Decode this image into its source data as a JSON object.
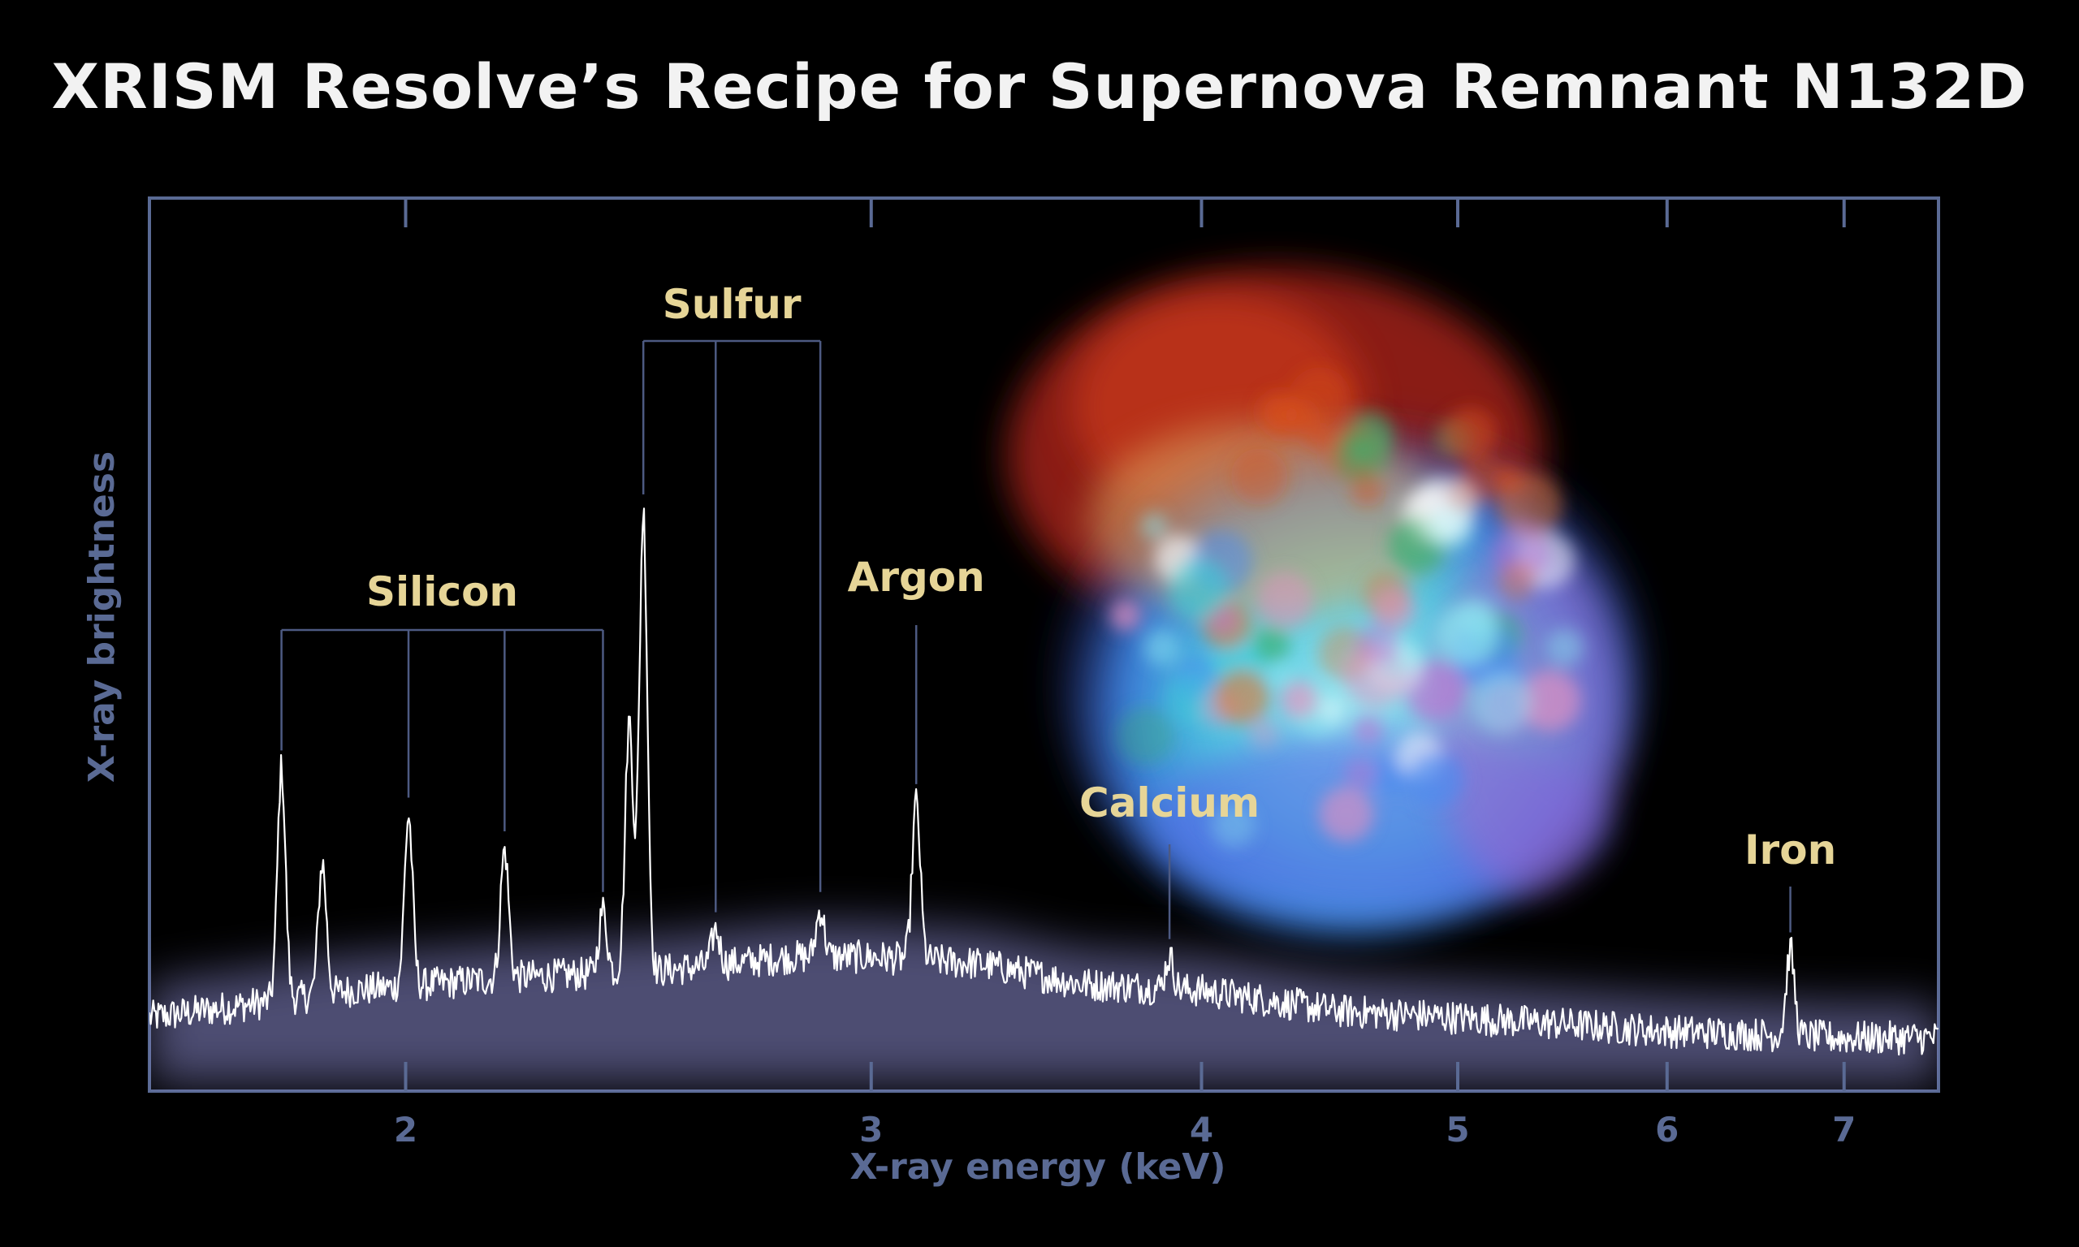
{
  "chart_data": {
    "type": "line",
    "title": "XRISM Resolve’s Recipe for Supernova Remnant N132D",
    "xlabel": "X-ray energy (keV)",
    "ylabel": "X-ray brightness",
    "xscale": "log",
    "xlim": [
      1.6,
      7.6
    ],
    "ylim": [
      0,
      1
    ],
    "xticks": [
      {
        "value": 2,
        "label": "2"
      },
      {
        "value": 3,
        "label": "3"
      },
      {
        "value": 4,
        "label": "4"
      },
      {
        "value": 5,
        "label": "5"
      },
      {
        "value": 6,
        "label": "6"
      },
      {
        "value": 7,
        "label": "7"
      }
    ],
    "yticks_shown": false,
    "grid": false,
    "continuum": [
      [
        1.6,
        0.05
      ],
      [
        1.9,
        0.09
      ],
      [
        2.2,
        0.11
      ],
      [
        2.5,
        0.12
      ],
      [
        2.8,
        0.14
      ],
      [
        3.0,
        0.14
      ],
      [
        3.3,
        0.13
      ],
      [
        3.6,
        0.1
      ],
      [
        4.0,
        0.09
      ],
      [
        4.5,
        0.06
      ],
      [
        5.0,
        0.05
      ],
      [
        6.0,
        0.03
      ],
      [
        7.0,
        0.02
      ],
      [
        7.6,
        0.02
      ]
    ],
    "peaks": [
      {
        "x": 1.795,
        "y": 0.42
      },
      {
        "x": 1.86,
        "y": 0.28
      },
      {
        "x": 2.005,
        "y": 0.35
      },
      {
        "x": 2.18,
        "y": 0.3
      },
      {
        "x": 2.375,
        "y": 0.21
      },
      {
        "x": 2.43,
        "y": 0.49
      },
      {
        "x": 2.46,
        "y": 0.8
      },
      {
        "x": 2.62,
        "y": 0.18
      },
      {
        "x": 2.87,
        "y": 0.21
      },
      {
        "x": 3.12,
        "y": 0.37
      },
      {
        "x": 3.89,
        "y": 0.14
      },
      {
        "x": 6.68,
        "y": 0.15
      }
    ],
    "annotations": [
      {
        "label": "Silicon",
        "color": "#e6d597",
        "lines": [
          1.795,
          2.005,
          2.18,
          2.375
        ]
      },
      {
        "label": "Sulfur",
        "color": "#e6d597",
        "lines": [
          2.46,
          2.62,
          2.87
        ]
      },
      {
        "label": "Argon",
        "color": "#e6d597",
        "lines": [
          3.12
        ]
      },
      {
        "label": "Calcium",
        "color": "#e6d597",
        "lines": [
          3.89
        ]
      },
      {
        "label": "Iron",
        "color": "#e6d597",
        "lines": [
          6.68
        ]
      }
    ],
    "colors": {
      "background": "#000000",
      "frame": "#5a6a94",
      "axis_text": "#5a6a94",
      "title": "#f2f2f2",
      "spectrum": "#ffffff",
      "glow": "#8c8cd0",
      "annotation": "#e6d597"
    },
    "inset_image": "supernova-remnant-n132d-xray-image"
  }
}
